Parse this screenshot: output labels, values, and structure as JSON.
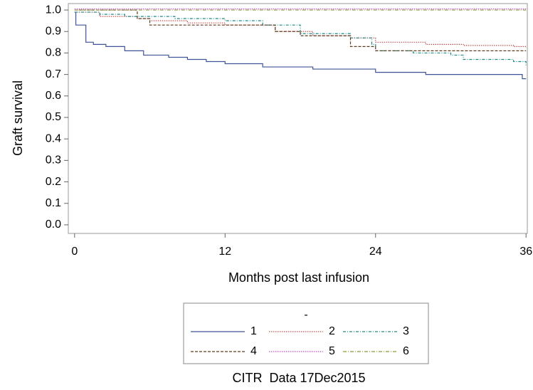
{
  "chart_data": {
    "type": "line",
    "step": "post",
    "xlabel": "Months post last infusion",
    "ylabel": "Graft survival",
    "legend_title": "-",
    "footnote": "CITR  Data 17Dec2015",
    "xlim": [
      -0.5,
      36.1
    ],
    "ylim": [
      -0.04,
      1.03
    ],
    "xticks": [
      0,
      12,
      24,
      36
    ],
    "yticks": [
      {
        "value": 0,
        "label": "0.0"
      },
      0.1,
      0.2,
      0.3,
      0.4,
      0.5,
      0.6,
      0.7,
      0.8,
      0.9,
      {
        "value": 1,
        "label": "1.0"
      }
    ],
    "series": [
      {
        "name": "1",
        "color": "#3f5497",
        "dash": "",
        "x": [
          0,
          0.1,
          0.9,
          1.5,
          2.5,
          4,
          5.5,
          7.5,
          9,
          10.5,
          12,
          15,
          19,
          24,
          28,
          35.7,
          36
        ],
        "values": [
          0.99,
          0.93,
          0.85,
          0.84,
          0.83,
          0.81,
          0.79,
          0.78,
          0.77,
          0.76,
          0.75,
          0.735,
          0.725,
          0.71,
          0.7,
          0.68,
          0.68
        ]
      },
      {
        "name": "2",
        "color": "#c0504d",
        "dash": "1.5,1.5",
        "x": [
          0,
          2,
          5,
          6,
          9,
          12,
          16,
          19,
          22,
          24,
          28,
          31,
          35,
          36
        ],
        "values": [
          0.99,
          0.97,
          0.96,
          0.95,
          0.94,
          0.93,
          0.9,
          0.88,
          0.87,
          0.85,
          0.84,
          0.835,
          0.83,
          0.825
        ]
      },
      {
        "name": "3",
        "color": "#1f8a8a",
        "dash": "4,2,1,2",
        "x": [
          0,
          2,
          4,
          8,
          12,
          15,
          18,
          22,
          23.7,
          24,
          27,
          30,
          31,
          35,
          36
        ],
        "values": [
          0.99,
          0.98,
          0.97,
          0.96,
          0.95,
          0.93,
          0.89,
          0.87,
          0.84,
          0.81,
          0.8,
          0.79,
          0.77,
          0.76,
          0.74
        ]
      },
      {
        "name": "4",
        "color": "#5e3f22",
        "dash": "4,2",
        "x": [
          0,
          4.5,
          5,
          6,
          12,
          16,
          18,
          22,
          24,
          36
        ],
        "values": [
          1.0,
          1.0,
          0.96,
          0.93,
          0.93,
          0.9,
          0.88,
          0.83,
          0.81,
          0.81
        ]
      },
      {
        "name": "5",
        "color": "#c44cc4",
        "dash": "1.5,1.5",
        "x": [
          0,
          36
        ],
        "values": [
          1.005,
          1.005
        ]
      },
      {
        "name": "6",
        "color": "#8a9a3a",
        "dash": "5,2,1,2",
        "x": [
          0,
          36
        ],
        "values": [
          1.0,
          1.0
        ]
      }
    ]
  }
}
